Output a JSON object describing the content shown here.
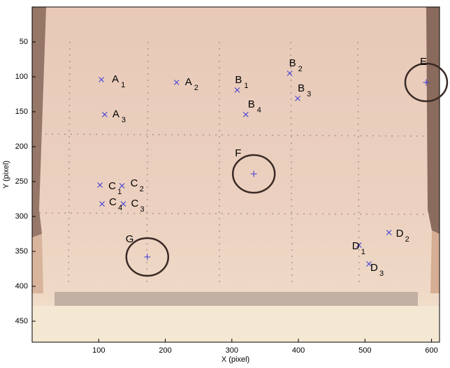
{
  "chart_data": {
    "type": "scatter",
    "xlabel": "X (pixel)",
    "ylabel": "Y (pixel)",
    "xlim": [
      0,
      612
    ],
    "ylim": [
      0,
      480
    ],
    "y_reversed": true,
    "xticks": [
      100,
      200,
      300,
      400,
      500,
      600
    ],
    "yticks": [
      50,
      100,
      150,
      200,
      250,
      300,
      350,
      400,
      450
    ],
    "series": [
      {
        "marker": "x",
        "color": "#3a3ad6",
        "x": [
          104,
          217,
          109,
          308,
          387,
          399,
          321,
          102,
          135,
          137,
          105,
          491,
          536,
          506
        ],
        "y": [
          104,
          108,
          154,
          119,
          95,
          131,
          154,
          255,
          256,
          282,
          282,
          341,
          323,
          368
        ],
        "labels": [
          "A",
          "A",
          "A",
          "B",
          "B",
          "B",
          "B",
          "C",
          "C",
          "C",
          "C",
          "D",
          "D",
          "D"
        ],
        "subscripts": [
          "1",
          "2",
          "3",
          "1",
          "2",
          "3",
          "4",
          "1",
          "2",
          "3",
          "4",
          "1",
          "2",
          "3"
        ]
      },
      {
        "marker": "+",
        "color": "#3a3ad6",
        "circled": true,
        "x": [
          592,
          333,
          173
        ],
        "y": [
          108,
          239,
          358
        ],
        "labels": [
          "E",
          "F",
          "G"
        ]
      }
    ]
  }
}
